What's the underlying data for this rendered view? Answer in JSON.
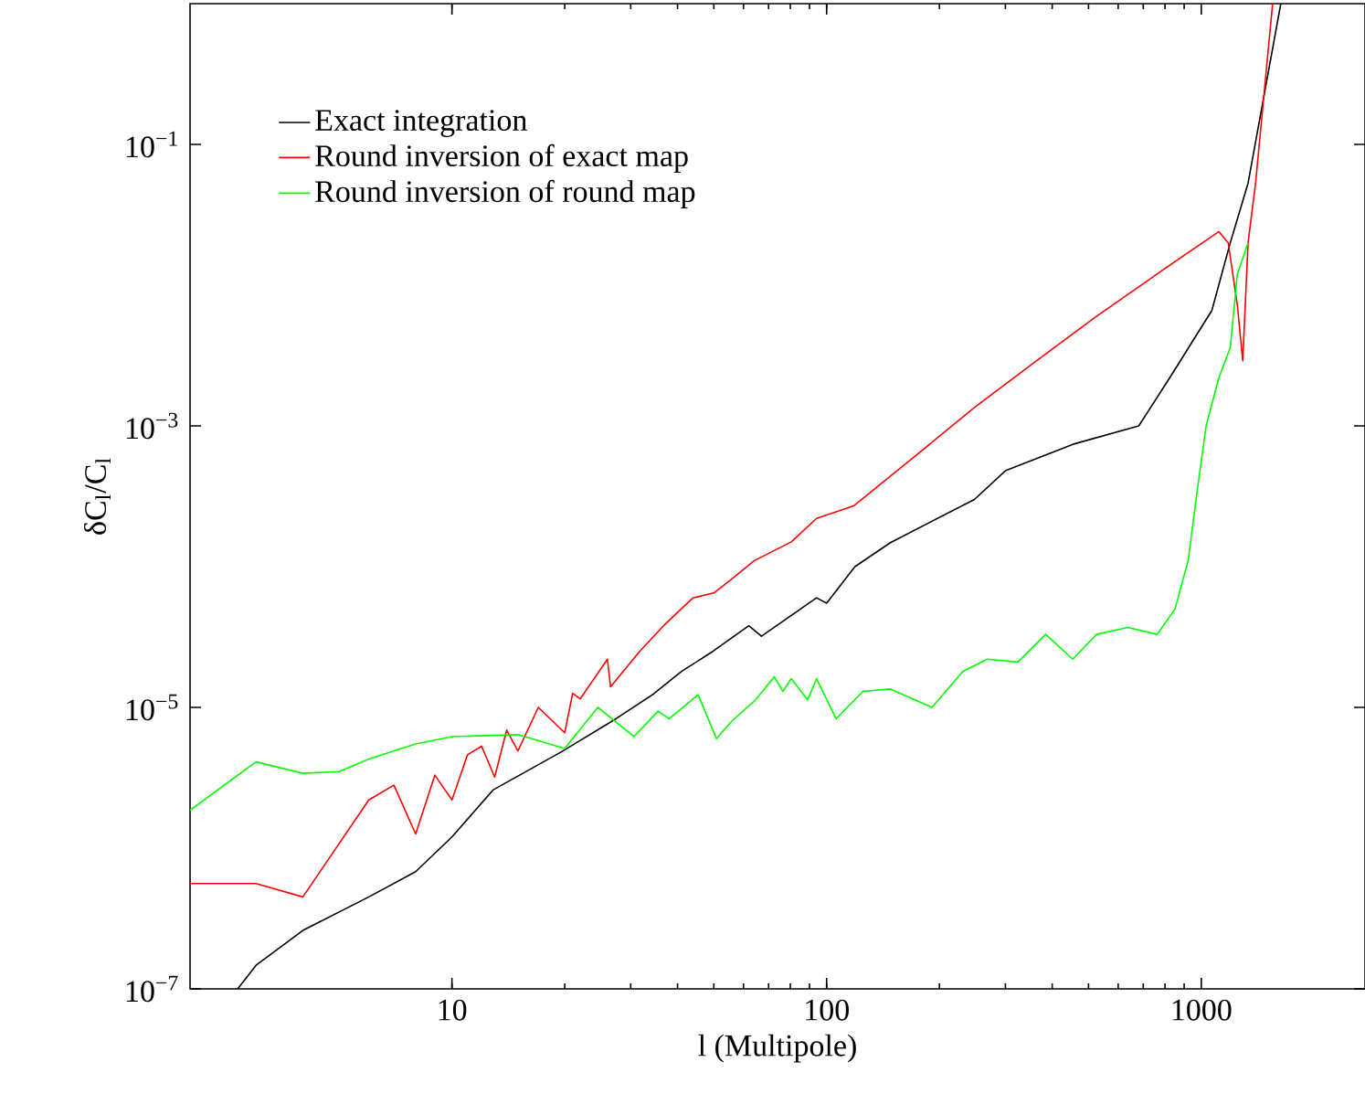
{
  "chart_data": {
    "type": "line",
    "xlabel": "l (Multipole)",
    "ylabel": "δC$_{l}$/C$_{l}$",
    "log": "xy",
    "xlim": [
      2,
      2735
    ],
    "ylim": [
      1e-07,
      1
    ],
    "xticks": [
      10,
      100,
      1000
    ],
    "yticks": [
      {
        "value": 1e-07,
        "label": "10$^{−7}$"
      },
      {
        "value": 1e-05,
        "label": "10$^{−5}$"
      },
      {
        "value": 0.001,
        "label": "10$^{−3}$"
      },
      {
        "value": 0.1,
        "label": "10$^{−1}$"
      }
    ],
    "legend": "top left",
    "marker": "none",
    "line_style": "solid",
    "grid": false,
    "series": [
      {
        "name": "Exact integration",
        "color": "#000000",
        "x": [
          2.68,
          3,
          4,
          6,
          8,
          10,
          12.9,
          19.5,
          27.4,
          34.3,
          41,
          49.7,
          62,
          67,
          94,
          100,
          119,
          148,
          248,
          300,
          454,
          681,
          824,
          1067,
          1195,
          1333,
          1630
        ],
        "values": [
          1e-07,
          1.47e-07,
          2.6e-07,
          4.5e-07,
          6.8e-07,
          1.2e-06,
          2.6e-06,
          4.8e-06,
          8.3e-06,
          1.23e-05,
          1.8e-05,
          2.5e-05,
          3.8e-05,
          3.2e-05,
          6e-05,
          5.5e-05,
          0.0001,
          0.000148,
          0.0003,
          0.00048,
          0.00074,
          0.001,
          0.0022,
          0.0066,
          0.02,
          0.053,
          1
        ]
      },
      {
        "name": "Round inversion of exact map",
        "color": "#ff0000",
        "x": [
          2,
          3,
          4,
          6,
          7,
          8,
          9,
          10,
          11,
          12,
          13,
          14,
          15,
          17,
          20,
          21,
          22,
          26,
          26.5,
          31.7,
          36.7,
          44,
          50,
          55.6,
          64,
          80.5,
          94,
          118,
          171,
          248,
          363,
          525,
          762,
          1114,
          1180,
          1248,
          1290,
          1333,
          1396,
          1550
        ],
        "values": [
          5.6e-07,
          5.6e-07,
          4.5e-07,
          2.2e-06,
          2.8e-06,
          1.26e-06,
          3.3e-06,
          2.2e-06,
          4.6e-06,
          5.3e-06,
          3.2e-06,
          6.9e-06,
          4.9e-06,
          1e-05,
          6.6e-06,
          1.26e-05,
          1.15e-05,
          2.2e-05,
          1.4e-05,
          2.5e-05,
          3.8e-05,
          6e-05,
          6.5e-05,
          8.1e-05,
          0.00011,
          0.00015,
          0.00022,
          0.00027,
          0.0006,
          0.00135,
          0.0029,
          0.006,
          0.012,
          0.024,
          0.02,
          0.0072,
          0.0029,
          0.02,
          0.053,
          1
        ]
      },
      {
        "name": "Round inversion of round map",
        "color": "#00ff00",
        "x": [
          2,
          3,
          4,
          5,
          6,
          8,
          10,
          15,
          20,
          24.5,
          30.6,
          35.5,
          38,
          45.4,
          50.8,
          55.6,
          64.6,
          72.5,
          76.4,
          80.5,
          89,
          94,
          106,
          125,
          148,
          191,
          231,
          268,
          324,
          384,
          454,
          525,
          637,
          762,
          851,
          922,
          977,
          1030,
          1114,
          1195,
          1248,
          1333
        ],
        "values": [
          1.86e-06,
          4.1e-06,
          3.4e-06,
          3.5e-06,
          4.3e-06,
          5.5e-06,
          6.2e-06,
          6.4e-06,
          5.1e-06,
          1e-05,
          6.2e-06,
          9.4e-06,
          8.3e-06,
          1.23e-05,
          6e-06,
          7.9e-06,
          1.13e-05,
          1.65e-05,
          1.3e-05,
          1.6e-05,
          1.13e-05,
          1.6e-05,
          8.3e-06,
          1.3e-05,
          1.35e-05,
          1e-05,
          1.8e-05,
          2.2e-05,
          2.1e-05,
          3.3e-05,
          2.2e-05,
          3.3e-05,
          3.7e-05,
          3.3e-05,
          5e-05,
          0.00011,
          0.00036,
          0.001,
          0.0022,
          0.0036,
          0.012,
          0.02
        ]
      }
    ]
  }
}
